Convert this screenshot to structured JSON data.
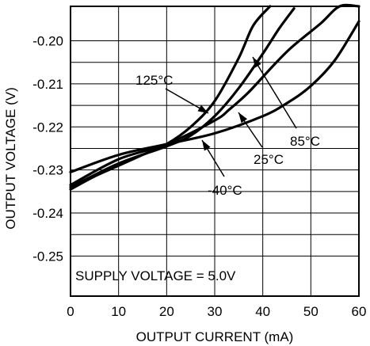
{
  "chart_data": {
    "type": "line",
    "xlabel": "OUTPUT CURRENT (mA)",
    "ylabel": "OUTPUT VOLTAGE (V)",
    "xlim": [
      0,
      60
    ],
    "ylim": [
      -0.2593,
      -0.192
    ],
    "x_ticks": [
      0,
      10,
      20,
      30,
      40,
      50,
      60
    ],
    "y_ticks": [
      -0.2,
      -0.21,
      -0.22,
      -0.23,
      -0.24,
      -0.25
    ],
    "x_tick_labels": [
      "0",
      "10",
      "20",
      "30",
      "40",
      "50",
      "60"
    ],
    "y_tick_labels": [
      "-0.20",
      "-0.21",
      "-0.22",
      "-0.23",
      "-0.24",
      "-0.25"
    ],
    "grid": true,
    "annotation": "SUPPLY VOLTAGE = 5.0V",
    "series": [
      {
        "name": "125°C",
        "x": [
          0,
          5,
          10,
          15,
          20,
          25,
          30,
          35,
          38,
          41.5
        ],
        "y": [
          -0.2345,
          -0.2315,
          -0.229,
          -0.2265,
          -0.224,
          -0.22,
          -0.214,
          -0.204,
          -0.1965,
          -0.192
        ]
      },
      {
        "name": "85°C",
        "x": [
          0,
          10,
          20,
          25,
          30,
          35,
          40,
          43.5,
          46.5
        ],
        "y": [
          -0.234,
          -0.2285,
          -0.2245,
          -0.222,
          -0.2175,
          -0.211,
          -0.203,
          -0.197,
          -0.1925
        ]
      },
      {
        "name": "25°C",
        "x": [
          0,
          10,
          20,
          30,
          33,
          37,
          42,
          46,
          52,
          56,
          60
        ],
        "y": [
          -0.2335,
          -0.2275,
          -0.224,
          -0.2185,
          -0.216,
          -0.212,
          -0.206,
          -0.2015,
          -0.196,
          -0.192,
          -0.192
        ]
      },
      {
        "name": "-40°C",
        "x": [
          0,
          10,
          20,
          30,
          40,
          45,
          50,
          55,
          60
        ],
        "y": [
          -0.2305,
          -0.2265,
          -0.224,
          -0.2215,
          -0.2175,
          -0.2145,
          -0.2105,
          -0.2045,
          -0.1955
        ]
      }
    ],
    "labels": [
      {
        "series": "125°C",
        "text": "125°C"
      },
      {
        "series": "85°C",
        "text": "85°C"
      },
      {
        "series": "25°C",
        "text": "25°C"
      },
      {
        "series": "-40°C",
        "text": "-40°C"
      }
    ]
  }
}
